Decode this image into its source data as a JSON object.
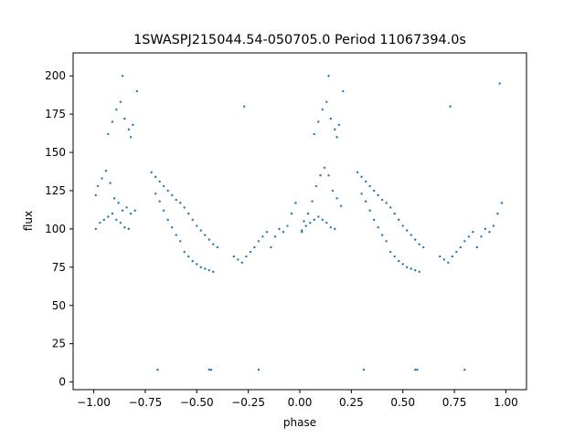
{
  "chart_data": {
    "type": "scatter",
    "title": "1SWASPJ215044.54-050705.0 Period 11067394.0s",
    "xlabel": "phase",
    "ylabel": "flux",
    "xlim": [
      -1.1,
      1.1
    ],
    "ylim": [
      -5,
      215
    ],
    "x_ticks": [
      -1.0,
      -0.75,
      -0.5,
      -0.25,
      0.0,
      0.25,
      0.5,
      0.75,
      1.0
    ],
    "x_tick_labels": [
      "−1.00",
      "−0.75",
      "−0.50",
      "−0.25",
      "0.00",
      "0.25",
      "0.50",
      "0.75",
      "1.00"
    ],
    "y_ticks": [
      0,
      25,
      50,
      75,
      100,
      125,
      150,
      175,
      200
    ],
    "y_tick_labels": [
      "0",
      "25",
      "50",
      "75",
      "100",
      "125",
      "150",
      "175",
      "200"
    ],
    "grid": false,
    "marker_color": "#1f77b4",
    "series": [
      {
        "x": [
          -0.99,
          -0.98,
          -0.96,
          -0.94,
          -0.92,
          -0.9,
          -0.88,
          -0.86,
          -0.84,
          -0.82,
          -0.8,
          -0.99,
          -0.97,
          -0.95,
          -0.93,
          -0.91,
          -0.89,
          -0.87,
          -0.85,
          -0.83,
          -0.93,
          -0.91,
          -0.89,
          -0.87,
          -0.85,
          -0.83,
          -0.82,
          -0.81,
          -0.72,
          -0.7,
          -0.68,
          -0.66,
          -0.64,
          -0.62,
          -0.6,
          -0.58,
          -0.56,
          -0.54,
          -0.52,
          -0.5,
          -0.48,
          -0.46,
          -0.44,
          -0.42,
          -0.4,
          -0.7,
          -0.68,
          -0.66,
          -0.64,
          -0.62,
          -0.6,
          -0.58,
          -0.56,
          -0.54,
          -0.52,
          -0.5,
          -0.48,
          -0.46,
          -0.44,
          -0.42,
          -0.32,
          -0.3,
          -0.28,
          -0.26,
          -0.24,
          -0.22,
          -0.2,
          -0.18,
          -0.16,
          -0.14,
          -0.12,
          -0.1,
          -0.08,
          -0.06,
          -0.04,
          -0.02,
          0.01,
          0.02,
          0.04,
          0.06,
          0.08,
          0.1,
          0.12,
          0.14,
          0.16,
          0.18,
          0.2,
          0.01,
          0.03,
          0.05,
          0.07,
          0.09,
          0.11,
          0.13,
          0.15,
          0.17,
          0.07,
          0.09,
          0.11,
          0.13,
          0.15,
          0.17,
          0.18,
          0.19,
          0.28,
          0.3,
          0.32,
          0.34,
          0.36,
          0.38,
          0.4,
          0.42,
          0.44,
          0.46,
          0.48,
          0.5,
          0.52,
          0.54,
          0.56,
          0.58,
          0.6,
          0.3,
          0.32,
          0.34,
          0.36,
          0.38,
          0.4,
          0.42,
          0.44,
          0.46,
          0.48,
          0.5,
          0.52,
          0.54,
          0.56,
          0.58,
          0.68,
          0.7,
          0.72,
          0.74,
          0.76,
          0.78,
          0.8,
          0.82,
          0.84,
          0.86,
          0.88,
          0.9,
          0.92,
          0.94,
          0.96,
          0.98,
          -0.69,
          -0.44,
          -0.43,
          -0.2,
          0.31,
          0.56,
          0.57,
          0.8,
          -0.86,
          -0.79,
          -0.27,
          0.14,
          0.21,
          0.73,
          0.97
        ],
        "y": [
          122,
          128,
          133,
          138,
          130,
          120,
          117,
          112,
          114,
          110,
          112,
          100,
          104,
          106,
          108,
          110,
          106,
          104,
          101,
          100,
          162,
          170,
          178,
          183,
          172,
          165,
          160,
          168,
          137,
          134,
          131,
          128,
          125,
          122,
          119,
          117,
          114,
          110,
          106,
          102,
          99,
          96,
          93,
          90,
          88,
          123,
          118,
          112,
          106,
          101,
          96,
          92,
          85,
          82,
          79,
          77,
          75,
          74,
          73,
          72,
          82,
          80,
          78,
          82,
          85,
          88,
          92,
          95,
          98,
          88,
          95,
          100,
          98,
          102,
          110,
          117,
          98,
          105,
          110,
          118,
          128,
          135,
          140,
          135,
          125,
          120,
          115,
          99,
          102,
          104,
          106,
          108,
          106,
          104,
          101,
          100,
          162,
          170,
          178,
          183,
          172,
          165,
          160,
          168,
          137,
          134,
          131,
          128,
          125,
          122,
          119,
          117,
          114,
          110,
          106,
          102,
          99,
          96,
          93,
          90,
          88,
          123,
          118,
          112,
          106,
          101,
          96,
          92,
          85,
          82,
          79,
          77,
          75,
          74,
          73,
          72,
          82,
          80,
          78,
          82,
          85,
          88,
          92,
          95,
          98,
          88,
          95,
          100,
          98,
          102,
          110,
          117,
          8,
          8,
          8,
          8,
          8,
          8,
          8,
          8,
          200,
          190,
          180,
          200,
          190,
          180,
          195
        ]
      }
    ]
  }
}
